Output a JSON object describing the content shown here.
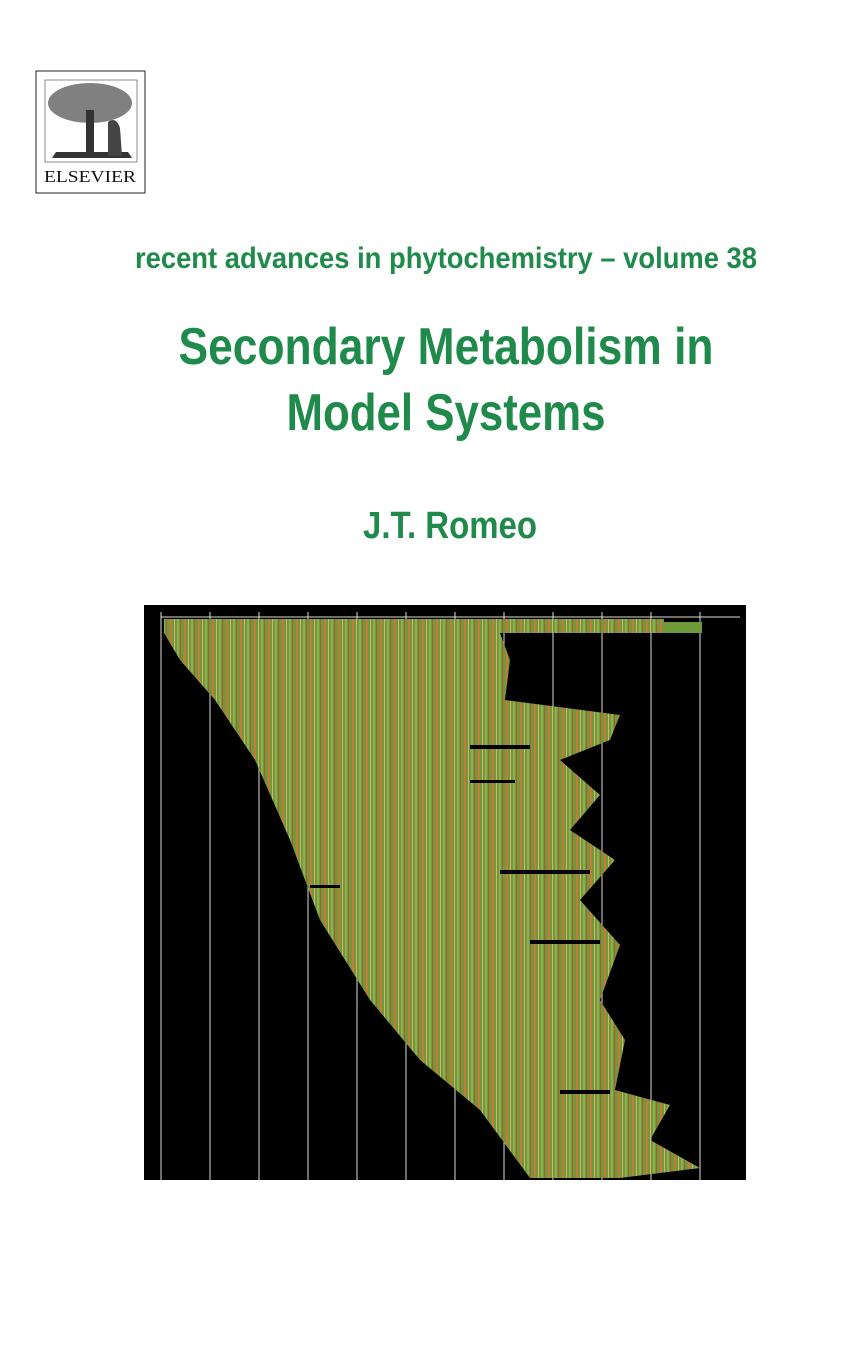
{
  "publisher": {
    "logo_text": "ELSEVIER"
  },
  "series": "recent advances in phytochemistry – volume 38",
  "title_lines": [
    "Secondary Metabolism in",
    "Model Systems"
  ],
  "author": "J.T. Romeo"
}
